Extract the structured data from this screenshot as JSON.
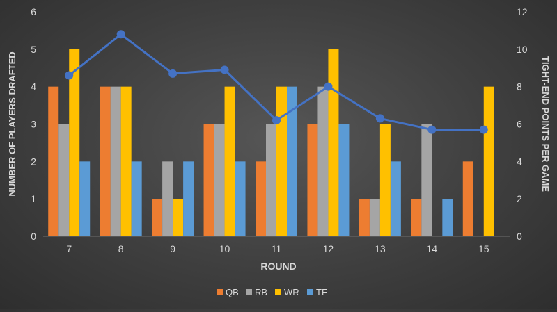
{
  "chart_data": {
    "type": "bar",
    "title": "",
    "categories": [
      "7",
      "8",
      "9",
      "10",
      "11",
      "12",
      "13",
      "14",
      "15"
    ],
    "xlabel": "ROUND",
    "ylabel": "NUMBER OF PLAYERS DRAFTED",
    "y2label": "TIGHT-END POINTS PER GAME",
    "ylim": [
      0,
      6
    ],
    "y2lim": [
      0,
      12
    ],
    "yticks": [
      "0",
      "1",
      "2",
      "3",
      "4",
      "5",
      "6"
    ],
    "y2ticks": [
      "0",
      "2",
      "4",
      "6",
      "8",
      "10",
      "12"
    ],
    "grid": false,
    "legend_position": "bottom-center",
    "series": [
      {
        "name": "QB",
        "type": "bar",
        "color": "#ED7D31",
        "values": [
          4,
          4,
          1,
          3,
          2,
          3,
          1,
          1,
          2
        ]
      },
      {
        "name": "RB",
        "type": "bar",
        "color": "#A5A5A5",
        "values": [
          3,
          4,
          2,
          3,
          3,
          4,
          1,
          3,
          0
        ]
      },
      {
        "name": "WR",
        "type": "bar",
        "color": "#FFC000",
        "values": [
          5,
          4,
          1,
          4,
          4,
          5,
          3,
          0,
          4
        ]
      },
      {
        "name": "TE",
        "type": "bar",
        "color": "#5B9BD5",
        "values": [
          2,
          2,
          2,
          2,
          4,
          3,
          2,
          1,
          0
        ]
      },
      {
        "name": "Tight-end points per game",
        "type": "line",
        "axis": "secondary",
        "color": "#4472C4",
        "values": [
          8.6,
          10.8,
          8.7,
          8.9,
          6.2,
          8.0,
          6.3,
          5.7,
          5.7
        ]
      }
    ]
  }
}
